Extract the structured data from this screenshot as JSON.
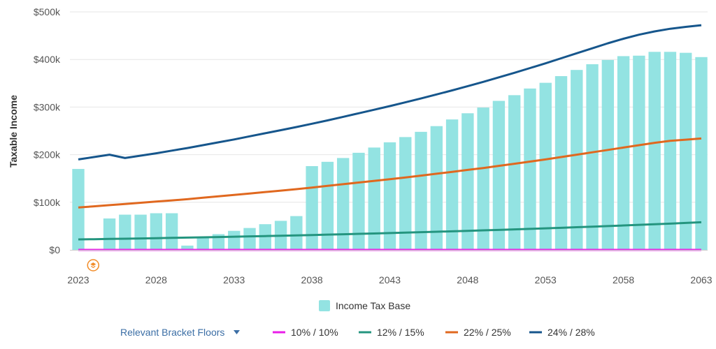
{
  "chart_data": {
    "type": "bar",
    "ylabel": "Taxable Income",
    "ylim": [
      0,
      500000
    ],
    "y_ticks": [
      "$0",
      "$100k",
      "$200k",
      "$300k",
      "$400k",
      "$500k"
    ],
    "y_tick_values": [
      0,
      100000,
      200000,
      300000,
      400000,
      500000
    ],
    "x_ticks": [
      "2023",
      "2028",
      "2033",
      "2038",
      "2043",
      "2048",
      "2053",
      "2058",
      "2063"
    ],
    "x_tick_values": [
      2023,
      2028,
      2033,
      2038,
      2043,
      2048,
      2053,
      2058,
      2063
    ],
    "x": [
      2023,
      2024,
      2025,
      2026,
      2027,
      2028,
      2029,
      2030,
      2031,
      2032,
      2033,
      2034,
      2035,
      2036,
      2037,
      2038,
      2039,
      2040,
      2041,
      2042,
      2043,
      2044,
      2045,
      2046,
      2047,
      2048,
      2049,
      2050,
      2051,
      2052,
      2053,
      2054,
      2055,
      2056,
      2057,
      2058,
      2059,
      2060,
      2061,
      2062,
      2063
    ],
    "bar_series": {
      "name": "Income Tax Base",
      "color": "#93e3e2",
      "values": [
        170000,
        null,
        66000,
        74000,
        74000,
        77000,
        77000,
        9000,
        27000,
        33000,
        40000,
        46000,
        54000,
        61000,
        71000,
        176000,
        185000,
        193000,
        204000,
        215000,
        226000,
        237000,
        248000,
        260000,
        274000,
        287000,
        299000,
        313000,
        325000,
        339000,
        351000,
        365000,
        378000,
        390000,
        399000,
        407000,
        408000,
        416000,
        416000,
        414000,
        405000
      ]
    },
    "line_series": [
      {
        "name": "10% / 10%",
        "color": "#e91ee8",
        "values": [
          0,
          0,
          0,
          0,
          0,
          0,
          0,
          0,
          0,
          0,
          0,
          0,
          0,
          0,
          0,
          0,
          0,
          0,
          0,
          0,
          0,
          0,
          0,
          0,
          0,
          0,
          0,
          0,
          0,
          0,
          0,
          0,
          0,
          0,
          0,
          0,
          0,
          0,
          0,
          0,
          0
        ]
      },
      {
        "name": "12% / 15%",
        "color": "#24957f",
        "values": [
          22000,
          22500,
          23000,
          23500,
          24000,
          24600,
          25200,
          25800,
          26400,
          27000,
          27700,
          28400,
          29100,
          29800,
          30500,
          31300,
          32100,
          32900,
          33700,
          34500,
          35400,
          36300,
          37200,
          38100,
          39000,
          40000,
          41000,
          42000,
          43100,
          44200,
          45300,
          46400,
          47600,
          48800,
          50000,
          51300,
          52600,
          53900,
          55200,
          56600,
          58000
        ]
      },
      {
        "name": "22% / 25%",
        "color": "#e0681f",
        "values": [
          89000,
          91500,
          94000,
          96500,
          99000,
          101500,
          104000,
          106500,
          109500,
          112500,
          115500,
          118500,
          121500,
          124500,
          127500,
          131000,
          134500,
          138000,
          141500,
          145000,
          148500,
          152000,
          156000,
          160000,
          164000,
          168000,
          172000,
          176500,
          181000,
          185500,
          190000,
          195000,
          200000,
          205000,
          210000,
          215000,
          220000,
          225000,
          229000,
          231500,
          234000
        ]
      },
      {
        "name": "24% / 28%",
        "color": "#16568c",
        "values": [
          190000,
          195000,
          200000,
          193000,
          198000,
          203000,
          208500,
          214000,
          220000,
          226000,
          232000,
          238500,
          245000,
          251500,
          258000,
          265000,
          272000,
          279500,
          287000,
          294500,
          302000,
          310000,
          318000,
          326500,
          335000,
          344000,
          353000,
          362500,
          372000,
          382000,
          392000,
          402500,
          413000,
          423500,
          434000,
          443500,
          452000,
          459000,
          464500,
          468500,
          472000
        ]
      }
    ],
    "legend_position": "bottom",
    "grid": true
  },
  "legend": {
    "bar_label": "Income Tax Base",
    "menu_label": "Relevant Bracket Floors",
    "menu_icon": "caret-down-icon",
    "line_labels": [
      "10% / 10%",
      "12% / 15%",
      "22% / 25%",
      "24% / 28%"
    ]
  },
  "marker": {
    "icon": "milestone-icon",
    "year": 2024,
    "color": "#f28c28"
  }
}
